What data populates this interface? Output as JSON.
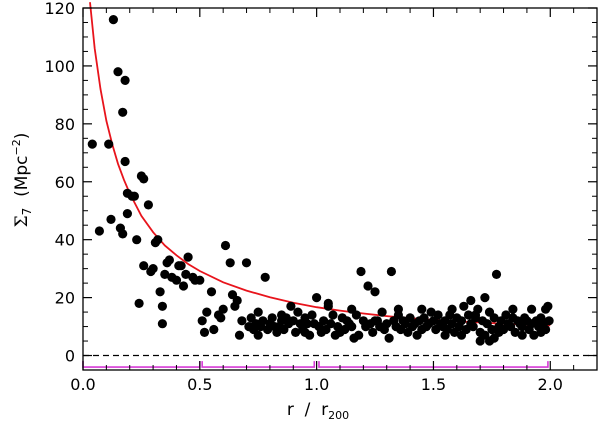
{
  "chart_data": {
    "type": "scatter",
    "title": "",
    "xlabel": {
      "main": "r",
      "sep": "/",
      "sym": "r",
      "sub": "200"
    },
    "ylabel": {
      "sym": "Σ",
      "sub": "7",
      "unit_pre": "(Mpc",
      "unit_exp": "−2",
      "unit_post": ")"
    },
    "xlim": [
      0.0,
      2.2
    ],
    "ylim": [
      -5,
      120
    ],
    "x_ticks": [
      0.0,
      0.5,
      1.0,
      1.5,
      2.0
    ],
    "x_tick_labels": [
      "0.0",
      "0.5",
      "1.0",
      "1.5",
      "2.0"
    ],
    "y_ticks": [
      0,
      20,
      40,
      60,
      80,
      100,
      120
    ],
    "y_tick_labels": [
      "0",
      "20",
      "40",
      "60",
      "80",
      "100",
      "120"
    ],
    "zero_line": {
      "y": 0,
      "style": "dashed",
      "color": "#000000"
    },
    "fit_curve": {
      "name": "fit",
      "color": "#e8141c",
      "points": [
        [
          0.03,
          122
        ],
        [
          0.05,
          106
        ],
        [
          0.075,
          92
        ],
        [
          0.1,
          81
        ],
        [
          0.125,
          73
        ],
        [
          0.15,
          66.2
        ],
        [
          0.175,
          60.7
        ],
        [
          0.2,
          56
        ],
        [
          0.25,
          48.2
        ],
        [
          0.3,
          42.6
        ],
        [
          0.35,
          38
        ],
        [
          0.4,
          34.6
        ],
        [
          0.45,
          31.6
        ],
        [
          0.5,
          29.2
        ],
        [
          0.6,
          25.3
        ],
        [
          0.7,
          22.4
        ],
        [
          0.8,
          20.1
        ],
        [
          0.9,
          18.2
        ],
        [
          1.0,
          16.7
        ],
        [
          1.1,
          15.5
        ],
        [
          1.2,
          14.5
        ],
        [
          1.3,
          13.6
        ],
        [
          1.4,
          12.9
        ],
        [
          1.5,
          12.3
        ],
        [
          1.6,
          11.8
        ],
        [
          1.7,
          11.4
        ],
        [
          1.8,
          11.0
        ],
        [
          1.9,
          10.7
        ],
        [
          2.0,
          10.4
        ]
      ]
    },
    "bins": {
      "color": "#d63ad6",
      "y": -4,
      "ranges": [
        [
          0.0,
          0.5
        ],
        [
          0.51,
          0.99
        ],
        [
          1.01,
          1.99
        ]
      ]
    },
    "series": [
      {
        "name": "galaxies",
        "color": "#000000",
        "points": [
          [
            0.04,
            73
          ],
          [
            0.07,
            43
          ],
          [
            0.11,
            73
          ],
          [
            0.12,
            47
          ],
          [
            0.13,
            116
          ],
          [
            0.15,
            98
          ],
          [
            0.16,
            44
          ],
          [
            0.17,
            42
          ],
          [
            0.17,
            84
          ],
          [
            0.18,
            95
          ],
          [
            0.18,
            67
          ],
          [
            0.19,
            56
          ],
          [
            0.19,
            49
          ],
          [
            0.21,
            55
          ],
          [
            0.22,
            55
          ],
          [
            0.23,
            40
          ],
          [
            0.24,
            18
          ],
          [
            0.25,
            62
          ],
          [
            0.26,
            61
          ],
          [
            0.26,
            31
          ],
          [
            0.28,
            52
          ],
          [
            0.29,
            29
          ],
          [
            0.3,
            30
          ],
          [
            0.31,
            39
          ],
          [
            0.32,
            40
          ],
          [
            0.33,
            22
          ],
          [
            0.34,
            17
          ],
          [
            0.34,
            11
          ],
          [
            0.35,
            28
          ],
          [
            0.36,
            32
          ],
          [
            0.37,
            33
          ],
          [
            0.38,
            27
          ],
          [
            0.4,
            26
          ],
          [
            0.41,
            31
          ],
          [
            0.42,
            31
          ],
          [
            0.43,
            24
          ],
          [
            0.44,
            28
          ],
          [
            0.45,
            34
          ],
          [
            0.47,
            27
          ],
          [
            0.48,
            26
          ],
          [
            0.5,
            26
          ],
          [
            0.51,
            12
          ],
          [
            0.52,
            8
          ],
          [
            0.53,
            15
          ],
          [
            0.55,
            22
          ],
          [
            0.56,
            9
          ],
          [
            0.58,
            14
          ],
          [
            0.59,
            13
          ],
          [
            0.6,
            16
          ],
          [
            0.61,
            38
          ],
          [
            0.63,
            32
          ],
          [
            0.64,
            21
          ],
          [
            0.65,
            17
          ],
          [
            0.66,
            19
          ],
          [
            0.67,
            7
          ],
          [
            0.68,
            12
          ],
          [
            0.7,
            32
          ],
          [
            0.71,
            10
          ],
          [
            0.72,
            13
          ],
          [
            0.73,
            9
          ],
          [
            0.74,
            11
          ],
          [
            0.75,
            7
          ],
          [
            0.76,
            10
          ],
          [
            0.77,
            12
          ],
          [
            0.78,
            27
          ],
          [
            0.79,
            9
          ],
          [
            0.8,
            11
          ],
          [
            0.81,
            13
          ],
          [
            0.82,
            10
          ],
          [
            0.83,
            8
          ],
          [
            0.84,
            10
          ],
          [
            0.85,
            12
          ],
          [
            0.86,
            9
          ],
          [
            0.87,
            13
          ],
          [
            0.88,
            11
          ],
          [
            0.89,
            17
          ],
          [
            0.9,
            12
          ],
          [
            0.91,
            8
          ],
          [
            0.92,
            15
          ],
          [
            0.93,
            11
          ],
          [
            0.94,
            9
          ],
          [
            0.95,
            13
          ],
          [
            0.96,
            11
          ],
          [
            0.97,
            7
          ],
          [
            0.98,
            14
          ],
          [
            0.99,
            11
          ],
          [
            1.0,
            20
          ],
          [
            1.01,
            10
          ],
          [
            1.02,
            8
          ],
          [
            1.03,
            12
          ],
          [
            1.04,
            9
          ],
          [
            1.05,
            18
          ],
          [
            1.06,
            11
          ],
          [
            1.07,
            14
          ],
          [
            1.08,
            7
          ],
          [
            1.09,
            10
          ],
          [
            1.1,
            8
          ],
          [
            1.11,
            13
          ],
          [
            1.12,
            9
          ],
          [
            1.13,
            12
          ],
          [
            1.14,
            11
          ],
          [
            1.15,
            10
          ],
          [
            1.16,
            6
          ],
          [
            1.17,
            14
          ],
          [
            1.18,
            7
          ],
          [
            1.19,
            29
          ],
          [
            1.2,
            12
          ],
          [
            1.21,
            10
          ],
          [
            1.22,
            24
          ],
          [
            1.23,
            11
          ],
          [
            1.24,
            8
          ],
          [
            1.25,
            22
          ],
          [
            1.26,
            12
          ],
          [
            1.27,
            10
          ],
          [
            1.28,
            15
          ],
          [
            1.29,
            9
          ],
          [
            1.3,
            11
          ],
          [
            1.31,
            6
          ],
          [
            1.32,
            29
          ],
          [
            1.33,
            12
          ],
          [
            1.34,
            10
          ],
          [
            1.35,
            14
          ],
          [
            1.36,
            9
          ],
          [
            1.37,
            12
          ],
          [
            1.38,
            11
          ],
          [
            1.39,
            8
          ],
          [
            1.4,
            13
          ],
          [
            1.41,
            10
          ],
          [
            1.42,
            11
          ],
          [
            1.43,
            7
          ],
          [
            1.44,
            12
          ],
          [
            1.45,
            9
          ],
          [
            1.46,
            13
          ],
          [
            1.47,
            10
          ],
          [
            1.48,
            11
          ],
          [
            1.49,
            15
          ],
          [
            1.5,
            12
          ],
          [
            1.51,
            9
          ],
          [
            1.52,
            14
          ],
          [
            1.53,
            11
          ],
          [
            1.54,
            10
          ],
          [
            1.55,
            12
          ],
          [
            1.56,
            9
          ],
          [
            1.57,
            14
          ],
          [
            1.58,
            11
          ],
          [
            1.59,
            8
          ],
          [
            1.6,
            13
          ],
          [
            1.61,
            10
          ],
          [
            1.62,
            12
          ],
          [
            1.63,
            17
          ],
          [
            1.64,
            9
          ],
          [
            1.65,
            14
          ],
          [
            1.66,
            11
          ],
          [
            1.67,
            10
          ],
          [
            1.68,
            13
          ],
          [
            1.69,
            16
          ],
          [
            1.7,
            8
          ],
          [
            1.71,
            12
          ],
          [
            1.72,
            7
          ],
          [
            1.73,
            11
          ],
          [
            1.74,
            15
          ],
          [
            1.75,
            9
          ],
          [
            1.76,
            13
          ],
          [
            1.77,
            28
          ],
          [
            1.78,
            10
          ],
          [
            1.79,
            12
          ],
          [
            1.8,
            9
          ],
          [
            1.81,
            14
          ],
          [
            1.82,
            11
          ],
          [
            1.83,
            10
          ],
          [
            1.84,
            13
          ],
          [
            1.85,
            8
          ],
          [
            1.86,
            12
          ],
          [
            1.87,
            11
          ],
          [
            1.88,
            10
          ],
          [
            1.89,
            13
          ],
          [
            1.9,
            12
          ],
          [
            1.91,
            9
          ],
          [
            1.92,
            11
          ],
          [
            1.93,
            7
          ],
          [
            1.94,
            12
          ],
          [
            1.95,
            10
          ],
          [
            1.96,
            13
          ],
          [
            1.97,
            11
          ],
          [
            1.98,
            16
          ],
          [
            1.99,
            17
          ],
          [
            1.995,
            12
          ],
          [
            1.66,
            19
          ],
          [
            1.7,
            5
          ],
          [
            1.72,
            20
          ],
          [
            1.74,
            5
          ],
          [
            1.76,
            6
          ],
          [
            1.55,
            7
          ],
          [
            1.45,
            16
          ],
          [
            1.35,
            16
          ],
          [
            1.25,
            12
          ],
          [
            1.15,
            16
          ],
          [
            1.05,
            17
          ],
          [
            0.95,
            8
          ],
          [
            0.85,
            14
          ],
          [
            0.75,
            15
          ],
          [
            1.58,
            16
          ],
          [
            1.62,
            7
          ],
          [
            1.68,
            14
          ],
          [
            1.78,
            8
          ],
          [
            1.84,
            16
          ],
          [
            1.88,
            7
          ],
          [
            1.92,
            16
          ],
          [
            1.96,
            8
          ],
          [
            1.98,
            9
          ]
        ]
      }
    ]
  }
}
